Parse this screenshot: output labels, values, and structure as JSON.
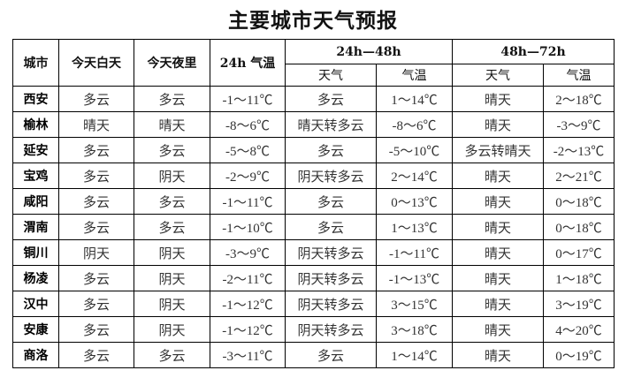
{
  "title": "主要城市天气预报",
  "headers": {
    "city": "城市",
    "day": "今天白天",
    "night": "今天夜里",
    "temp24": "24h 气温",
    "group48": "24h—48h",
    "group72": "48h—72h",
    "weather": "天气",
    "temp": "气温"
  },
  "rows": [
    [
      "西安",
      "多云",
      "多云",
      "-1～11℃",
      "多云",
      "1～14℃",
      "晴天",
      "2～18℃"
    ],
    [
      "榆林",
      "晴天",
      "晴天",
      "-8～6℃",
      "晴天转多云",
      "-8～6℃",
      "晴天",
      "-3～9℃"
    ],
    [
      "延安",
      "多云",
      "多云",
      "-5～8℃",
      "多云",
      "-5～10℃",
      "多云转晴天",
      "-2～13℃"
    ],
    [
      "宝鸡",
      "多云",
      "阴天",
      "-2～9℃",
      "阴天转多云",
      "2～14℃",
      "晴天",
      "2～21℃"
    ],
    [
      "咸阳",
      "多云",
      "多云",
      "-1～11℃",
      "多云",
      "0～13℃",
      "晴天",
      "0～18℃"
    ],
    [
      "渭南",
      "多云",
      "多云",
      "-1～10℃",
      "多云",
      "1～13℃",
      "晴天",
      "0～18℃"
    ],
    [
      "铜川",
      "阴天",
      "阴天",
      "-3～9℃",
      "阴天转多云",
      "-1～11℃",
      "晴天",
      "0～17℃"
    ],
    [
      "杨凌",
      "多云",
      "阴天",
      "-2～11℃",
      "阴天转多云",
      "-1～13℃",
      "晴天",
      "1～18℃"
    ],
    [
      "汉中",
      "多云",
      "阴天",
      "-1～12℃",
      "阴天转多云",
      "3～15℃",
      "晴天",
      "3～19℃"
    ],
    [
      "安康",
      "多云",
      "阴天",
      "-1～12℃",
      "阴天转多云",
      "3～18℃",
      "晴天",
      "4～20℃"
    ],
    [
      "商洛",
      "多云",
      "多云",
      "-3～11℃",
      "多云",
      "1～14℃",
      "晴天",
      "0～19℃"
    ]
  ]
}
